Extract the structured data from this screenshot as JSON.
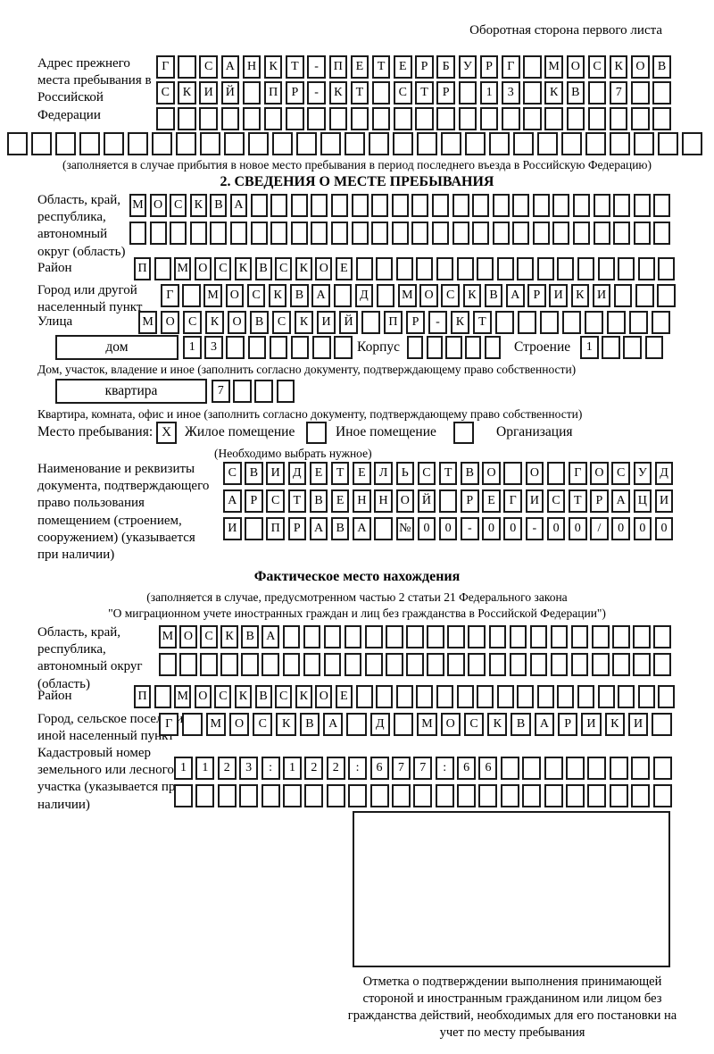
{
  "page": {
    "header_note": "Оборотная сторона первого листа"
  },
  "prev_address": {
    "label": "Адрес прежнего места пребывания в Российской Федерации",
    "row1": {
      "text": "Г САНКТ-ПЕТЕРБУРГ МОСКОВ",
      "count": 24
    },
    "row2": {
      "text": "СКИЙ ПР-КТ СТР 13 КВ 7",
      "count": 24
    },
    "row3": {
      "text": "",
      "count": 24
    },
    "row4": {
      "text": "",
      "count": 29
    },
    "note": "(заполняется в случае прибытия в новое место пребывания в период последнего въезда в Российскую Федерацию)"
  },
  "section2": {
    "title": "2. СВЕДЕНИЯ О МЕСТЕ ПРЕБЫВАНИЯ",
    "region": {
      "label": "Область, край, республика, автономный округ (область)",
      "row1": {
        "text": "МОСКВА",
        "count": 27
      },
      "row2": {
        "text": "",
        "count": 27
      }
    },
    "district": {
      "label": "Район",
      "row": {
        "text": "П МОСКВСКОЕ",
        "count": 27
      }
    },
    "city": {
      "label": "Город или другой населенный пункт",
      "row": {
        "text": "Г МОСКВА Д МОСКВАРИКИ",
        "count": 24
      }
    },
    "street": {
      "label": "Улица",
      "row": {
        "text": "МОСКОВСКИЙ ПР-КТ",
        "count": 24
      }
    },
    "house": {
      "box_label": "дом",
      "row": {
        "text": "13",
        "count": 8
      },
      "korpus_label": "Корпус",
      "korpus_row": {
        "text": "",
        "count": 5
      },
      "stroenie_label": "Строение",
      "stroenie_row": {
        "text": "1",
        "count": 4
      },
      "note": "Дом, участок, владение и иное (заполнить согласно документу, подтверждающему право собственности)"
    },
    "apartment": {
      "box_label": "квартира",
      "row": {
        "text": "7",
        "count": 4
      },
      "note": "Квартира, комната, офис и иное (заполнить согласно документу, подтверждающему право собственности)"
    },
    "residence": {
      "label": "Место пребывания:",
      "options": [
        {
          "mark": "X",
          "label": "Жилое помещение"
        },
        {
          "mark": "",
          "label": "Иное помещение"
        },
        {
          "mark": "",
          "label": "Организация"
        }
      ],
      "note": "(Необходимо выбрать нужное)"
    },
    "document": {
      "label": "Наименование и реквизиты документа, подтверждающего право пользования помещением (строением, сооружением) (указывается при наличии)",
      "row1": {
        "text": "СВИДЕТЕЛЬСТВО О ГОСУД",
        "count": 21
      },
      "row2": {
        "text": "АРСТВЕННОЙ РЕГИСТРАЦИ",
        "count": 21
      },
      "row3": {
        "text": "И ПРАВА №00-00-00/000",
        "count": 21
      }
    }
  },
  "actual_location": {
    "title": "Фактическое место нахождения",
    "note1": "(заполняется в случае, предусмотренном частью 2 статьи 21 Федерального закона",
    "note2": "\"О миграционном учете иностранных граждан и лиц без гражданства в Российской Федерации\")",
    "region": {
      "label": "Область, край, республика, автономный округ (область)",
      "row1": {
        "text": "МОСКВА",
        "count": 25
      },
      "row2": {
        "text": "",
        "count": 25
      }
    },
    "district": {
      "label": "Район",
      "row": {
        "text": "П МОСКВСКОЕ",
        "count": 27
      }
    },
    "city": {
      "label": "Город, сельское поселение, иной населенный пункт",
      "row": {
        "text": "Г МОСКВА Д МОСКВАРИКИ",
        "count": 22
      }
    },
    "cadastral": {
      "label": "Кадастровый номер земельного или лесного участка (указывается при наличии)",
      "row1": {
        "text": "1123:122:677:66",
        "count": 23
      },
      "row2": {
        "text": "",
        "count": 23
      }
    }
  },
  "stamp": {
    "caption": "Отметка о подтверждении выполнения принимающей стороной и иностранным гражданином или лицом без гражданства действий, необходимых для его постановки на учет по месту пребывания"
  }
}
